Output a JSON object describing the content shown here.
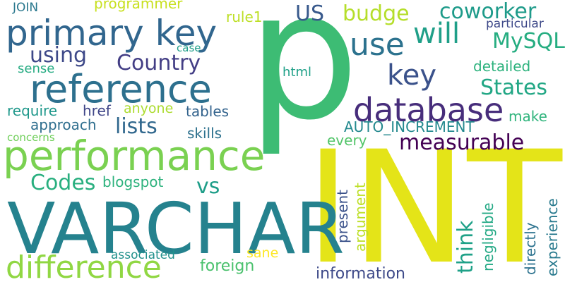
{
  "words": [
    {
      "text": "p",
      "color": "#3dbc74"
    },
    {
      "text": "INT",
      "color": "#e4e418"
    },
    {
      "text": "VARCHAR",
      "color": "#25828e"
    },
    {
      "text": "performance",
      "color": "#7ad151"
    },
    {
      "text": "reference",
      "color": "#2d708e"
    },
    {
      "text": "primary key",
      "color": "#31668e"
    },
    {
      "text": "database",
      "color": "#472d7b"
    },
    {
      "text": "difference",
      "color": "#90d743"
    },
    {
      "text": "use",
      "color": "#2c728e"
    },
    {
      "text": "will",
      "color": "#1f9f88"
    },
    {
      "text": "key",
      "color": "#3b528b"
    },
    {
      "text": "budge",
      "color": "#b5de2b"
    },
    {
      "text": "coworker",
      "color": "#1e9b8a"
    },
    {
      "text": "US",
      "color": "#38598c"
    },
    {
      "text": "MySQL",
      "color": "#26ad81"
    },
    {
      "text": "using",
      "color": "#3e4989"
    },
    {
      "text": "Country",
      "color": "#433e85"
    },
    {
      "text": "States",
      "color": "#22a785"
    },
    {
      "text": "measurable",
      "color": "#440154"
    },
    {
      "text": "lists",
      "color": "#31688e"
    },
    {
      "text": "Codes",
      "color": "#29af7f"
    },
    {
      "text": "vs",
      "color": "#1f9e89"
    },
    {
      "text": "think",
      "color": "#1fa188"
    },
    {
      "text": "programmer",
      "color": "#c8e020"
    },
    {
      "text": "rule1",
      "color": "#bddf26"
    },
    {
      "text": "JOIN",
      "color": "#2a788e"
    },
    {
      "text": "particular",
      "color": "#3e4989"
    },
    {
      "text": "case",
      "color": "#1f9e89"
    },
    {
      "text": "sense",
      "color": "#25ab82"
    },
    {
      "text": "html",
      "color": "#1fa088"
    },
    {
      "text": "detailed",
      "color": "#2db27d"
    },
    {
      "text": "make",
      "color": "#2fb47c"
    },
    {
      "text": "require",
      "color": "#1f988b"
    },
    {
      "text": "href",
      "color": "#404688"
    },
    {
      "text": "anyone",
      "color": "#addc30"
    },
    {
      "text": "tables",
      "color": "#33638d"
    },
    {
      "text": "approach",
      "color": "#2e6e8e"
    },
    {
      "text": "skills",
      "color": "#2d718e"
    },
    {
      "text": "AUTO_INCREMENT",
      "color": "#23898e"
    },
    {
      "text": "concerns",
      "color": "#6ece58"
    },
    {
      "text": "every",
      "color": "#52c569"
    },
    {
      "text": "blogspot",
      "color": "#2db27d"
    },
    {
      "text": "present",
      "color": "#3b528b"
    },
    {
      "text": "argument",
      "color": "#bddf26"
    },
    {
      "text": "negligible",
      "color": "#22a884"
    },
    {
      "text": "directly",
      "color": "#2c728e"
    },
    {
      "text": "experience",
      "color": "#297a8e"
    },
    {
      "text": "associated",
      "color": "#21918c"
    },
    {
      "text": "sane",
      "color": "#fde725"
    },
    {
      "text": "foreign",
      "color": "#4ac16d"
    },
    {
      "text": "information",
      "color": "#3e4a89"
    }
  ]
}
